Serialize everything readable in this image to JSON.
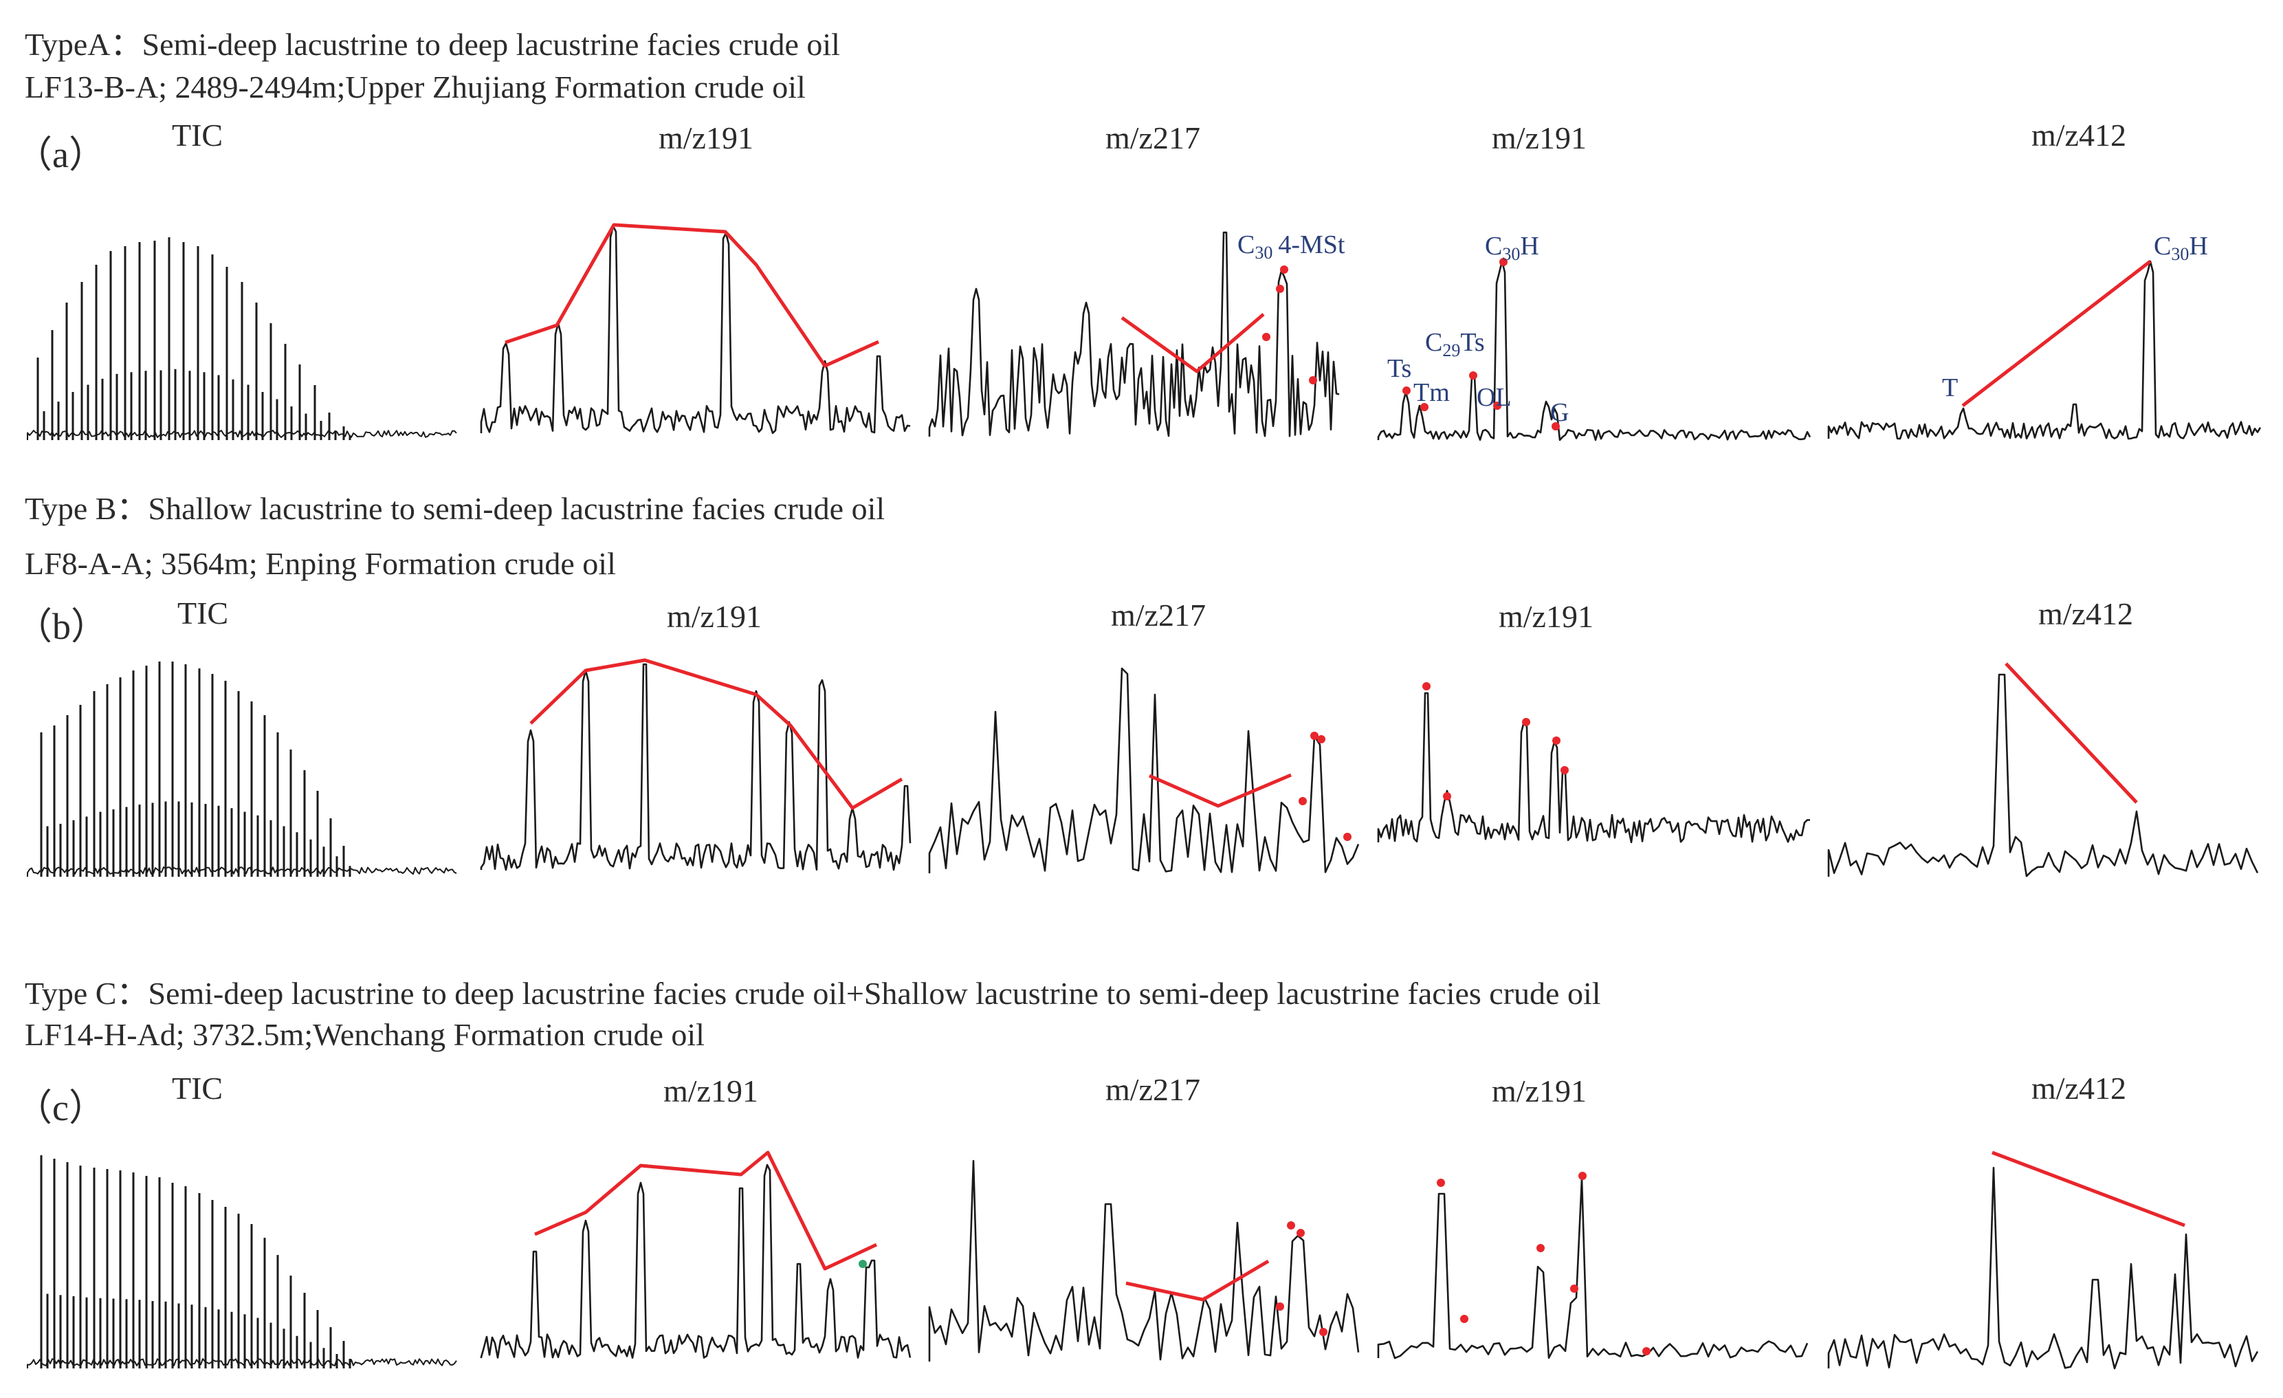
{
  "figure": {
    "rows": [
      {
        "id": "a",
        "type_line": "TypeA：Semi-deep lacustrine to deep lacustrine facies crude oil",
        "sample_line": "LF13-B-A;  2489-2494m;Upper Zhujiang Formation  crude oil",
        "panel_label": "（a）",
        "trace_titles": [
          "TIC",
          "m/z191",
          "m/z217",
          "m/z191",
          "m/z412"
        ],
        "peak_labels": {
          "c30_4mst": "4-MSt",
          "c30h_191": "H",
          "c29ts": "Ts",
          "ts": "Ts",
          "tm": "Tm",
          "ol": "OL",
          "g": "G",
          "c30h_412": "H",
          "t": "T"
        }
      },
      {
        "id": "b",
        "type_line": "Type B：Shallow lacustrine to semi-deep lacustrine facies crude oil",
        "sample_line": "LF8-A-A; 3564m; Enping Formation  crude oil",
        "panel_label": "（b）",
        "trace_titles": [
          "TIC",
          "m/z191",
          "m/z217",
          "m/z191",
          "m/z412"
        ]
      },
      {
        "id": "c",
        "type_line": "Type  C：Semi-deep lacustrine to deep lacustrine facies crude oil+Shallow lacustrine to semi-deep lacustrine facies crude oil",
        "sample_line": "LF14-H-Ad; 3732.5m;Wenchang Formation crude oil",
        "panel_label": "（c）",
        "trace_titles": [
          "TIC",
          "m/z191",
          "m/z217",
          "m/z191",
          "m/z412"
        ]
      }
    ],
    "colors": {
      "trace": "#1a1a1a",
      "trend_line": "#e8262b",
      "marker_red": "#e8262b",
      "marker_green": "#2ea36b",
      "peak_label": "#2a3f7a"
    }
  }
}
